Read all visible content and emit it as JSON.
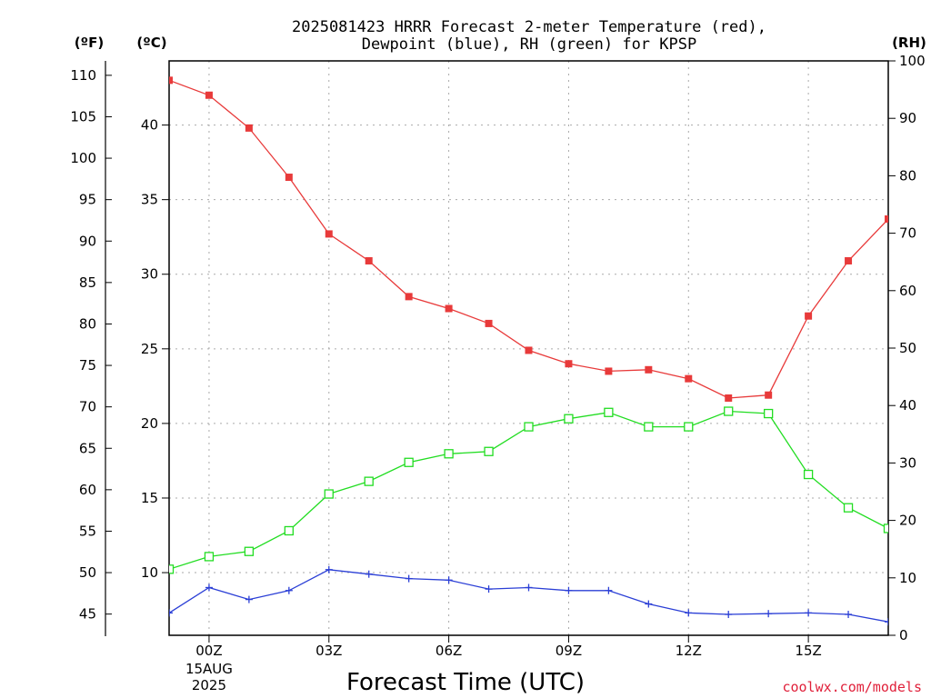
{
  "chart_data": {
    "type": "line",
    "title_lines": [
      "2025081423 HRRR Forecast 2-meter Temperature (red),",
      "Dewpoint (blue), RH (green) for KPSP"
    ],
    "xlabel": "Forecast Time (UTC)",
    "source": "coolwx.com/models",
    "units": {
      "fahrenheit": "(ºF)",
      "celsius": "(ºC)",
      "rh": "(RH)"
    },
    "x_ticks": [
      {
        "hour": 1,
        "label": "00Z",
        "sub": [
          "15AUG",
          "2025"
        ]
      },
      {
        "hour": 4,
        "label": "03Z"
      },
      {
        "hour": 7,
        "label": "06Z"
      },
      {
        "hour": 10,
        "label": "09Z"
      },
      {
        "hour": 13,
        "label": "12Z"
      },
      {
        "hour": 16,
        "label": "15Z"
      }
    ],
    "x_range": [
      0,
      18
    ],
    "fahrenheit_ticks": [
      45,
      50,
      55,
      60,
      65,
      70,
      75,
      80,
      85,
      90,
      95,
      100,
      105,
      110
    ],
    "celsius_ticks": [
      10,
      15,
      20,
      25,
      30,
      35,
      40
    ],
    "rh_ticks": [
      0,
      10,
      20,
      30,
      40,
      50,
      60,
      70,
      80,
      90,
      100
    ],
    "celsius_range": [
      5.8,
      44.3
    ],
    "rh_range": [
      0,
      100
    ],
    "grid": true,
    "series": [
      {
        "name": "Temperature",
        "axis": "celsius",
        "color": "#e83a3a",
        "marker": "filled-square",
        "x": [
          0,
          1,
          2,
          3,
          4,
          5,
          6,
          7,
          8,
          9,
          10,
          11,
          12,
          13,
          14,
          15,
          16,
          17,
          18
        ],
        "values": [
          43.0,
          42.0,
          39.8,
          36.5,
          32.7,
          30.9,
          28.5,
          27.7,
          26.7,
          24.9,
          24.0,
          23.5,
          23.6,
          23.0,
          21.7,
          21.9,
          27.2,
          30.9,
          33.7
        ]
      },
      {
        "name": "Dewpoint",
        "axis": "celsius",
        "color": "#2b3fd6",
        "marker": "plus",
        "x": [
          0,
          1,
          2,
          3,
          4,
          5,
          6,
          7,
          8,
          9,
          10,
          11,
          12,
          13,
          14,
          15,
          16,
          17,
          18
        ],
        "values": [
          7.3,
          9.0,
          8.2,
          8.8,
          10.2,
          9.9,
          9.6,
          9.5,
          8.9,
          9.0,
          8.8,
          8.8,
          7.9,
          7.3,
          7.2,
          7.25,
          7.3,
          7.2,
          6.7
        ]
      },
      {
        "name": "RH",
        "axis": "rh",
        "color": "#22dd22",
        "marker": "open-square",
        "x": [
          0,
          1,
          2,
          3,
          4,
          5,
          6,
          7,
          8,
          9,
          10,
          11,
          12,
          13,
          14,
          15,
          16,
          17,
          18
        ],
        "values": [
          11.5,
          13.7,
          14.6,
          18.2,
          24.6,
          26.8,
          30.1,
          31.6,
          32.0,
          36.3,
          37.7,
          38.8,
          36.3,
          36.3,
          39.0,
          38.6,
          28.0,
          22.2,
          18.6
        ]
      }
    ]
  }
}
